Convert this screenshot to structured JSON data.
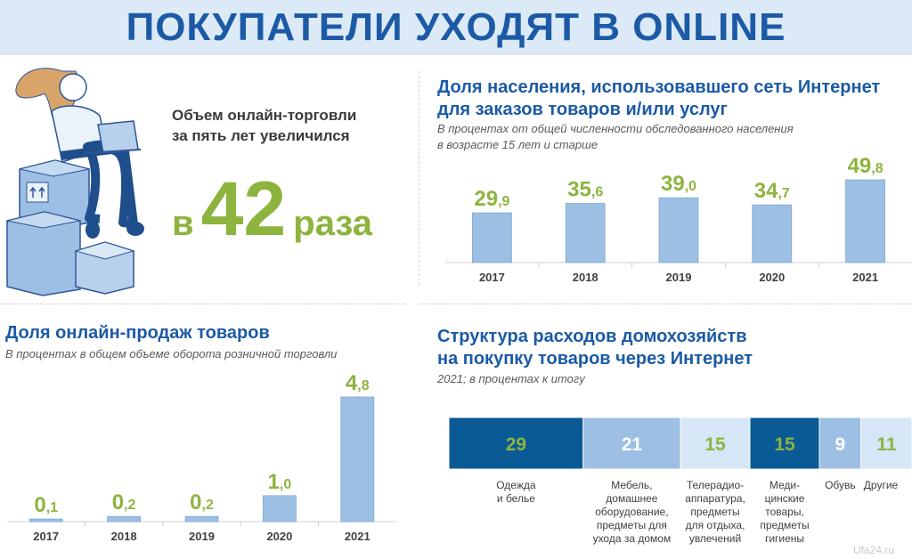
{
  "title": "ПОКУПАТЕЛИ УХОДЯТ В ONLINE",
  "growth": {
    "line1": "Объем онлайн-торговли",
    "line2": "за пять лет увеличился",
    "prefix": "в",
    "value": "42",
    "suffix": "раза"
  },
  "colors": {
    "bar": "#9cbfe3",
    "label_green": "#8db43e",
    "title_blue": "#1c5aa6",
    "dark_blue": "#0a5a96"
  },
  "chart_data": [
    {
      "type": "bar",
      "title_line1": "Доля населения, использовавшего сеть Интернет",
      "title_line2": "для заказов товаров и/или услуг",
      "subtitle_line1": "В процентах от общей численности обследованного населения",
      "subtitle_line2": "в возрасте 15 лет и старше",
      "categories": [
        "2017",
        "2018",
        "2019",
        "2020",
        "2021"
      ],
      "values": [
        29.9,
        35.6,
        39.0,
        34.7,
        49.8
      ],
      "value_labels_int": [
        "29",
        "35",
        "39",
        "34",
        "49"
      ],
      "value_labels_dec": [
        ",9",
        ",6",
        ",0",
        ",7",
        ",8"
      ]
    },
    {
      "type": "bar",
      "title_line1": "Доля онлайн-продаж товаров",
      "subtitle_line1": "В процентах в общем объеме оборота розничной торговли",
      "categories": [
        "2017",
        "2018",
        "2019",
        "2020",
        "2021"
      ],
      "values": [
        0.1,
        0.2,
        0.2,
        1.0,
        4.8
      ],
      "value_labels_int": [
        "0",
        "0",
        "0",
        "1",
        "4"
      ],
      "value_labels_dec": [
        ",1",
        ",2",
        ",2",
        ",0",
        ",8"
      ]
    },
    {
      "type": "bar",
      "stacked": true,
      "title_line1": "Структура расходов домохозяйств",
      "title_line2": "на покупку товаров через Интернет",
      "subtitle_line1": "2021; в процентах к итогу",
      "categories": [
        "Одежда\nи белье",
        "Мебель,\nдомашнее\nоборудование,\nпредметы для\nухода за домом",
        "Телерадио-\nаппаратура, предметы\nдля отдыха,\nувлечений",
        "Меди-\nцинские\nтовары,\nпредметы\nгигиены",
        "Обувь",
        "Другие"
      ],
      "values": [
        29,
        21,
        15,
        15,
        9,
        11
      ],
      "segment_colors": [
        "#0a5a96",
        "#9cbfe3",
        "#d6e6f6",
        "#0a5a96",
        "#9cbfe3",
        "#d6e6f6"
      ],
      "text_colors": [
        "#8db43e",
        "#ffffff",
        "#8db43e",
        "#8db43e",
        "#ffffff",
        "#8db43e"
      ]
    }
  ],
  "watermark": "Ufa24.ru"
}
